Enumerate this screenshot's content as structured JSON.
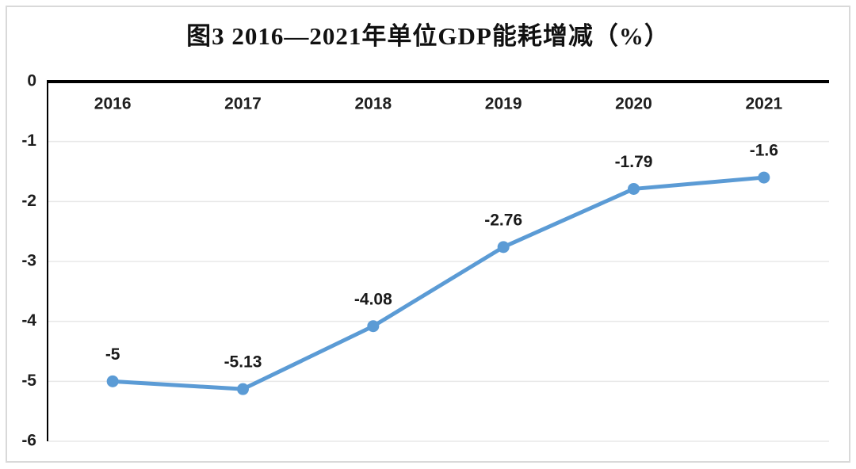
{
  "page": {
    "background_color": "#ffffff",
    "frame_border_color": "#d9d9d9"
  },
  "chart_data": {
    "type": "line",
    "title": "图3 2016—2021年单位GDP能耗增减（%）",
    "categories": [
      "2016",
      "2017",
      "2018",
      "2019",
      "2020",
      "2021"
    ],
    "values": [
      -5,
      -5.13,
      -4.08,
      -2.76,
      -1.79,
      -1.6
    ],
    "data_labels": [
      "-5",
      "-5.13",
      "-4.08",
      "-2.76",
      "-1.79",
      "-1.6"
    ],
    "y_tick_labels": [
      "0",
      "-1",
      "-2",
      "-3",
      "-4",
      "-5",
      "-6"
    ],
    "y_ticks": [
      0,
      -1,
      -2,
      -3,
      -4,
      -5,
      -6
    ],
    "ylim": [
      -6,
      0
    ],
    "xlabel": "",
    "ylabel": "",
    "legend": "none",
    "grid": true,
    "line_color": "#5b9bd5",
    "marker": "circle",
    "marker_color": "#5b9bd5",
    "axis_color": "#000000",
    "gridline_color": "#e8e8e8",
    "tick_label_color": "#1f1f1f",
    "data_label_color": "#1a1a1a"
  }
}
